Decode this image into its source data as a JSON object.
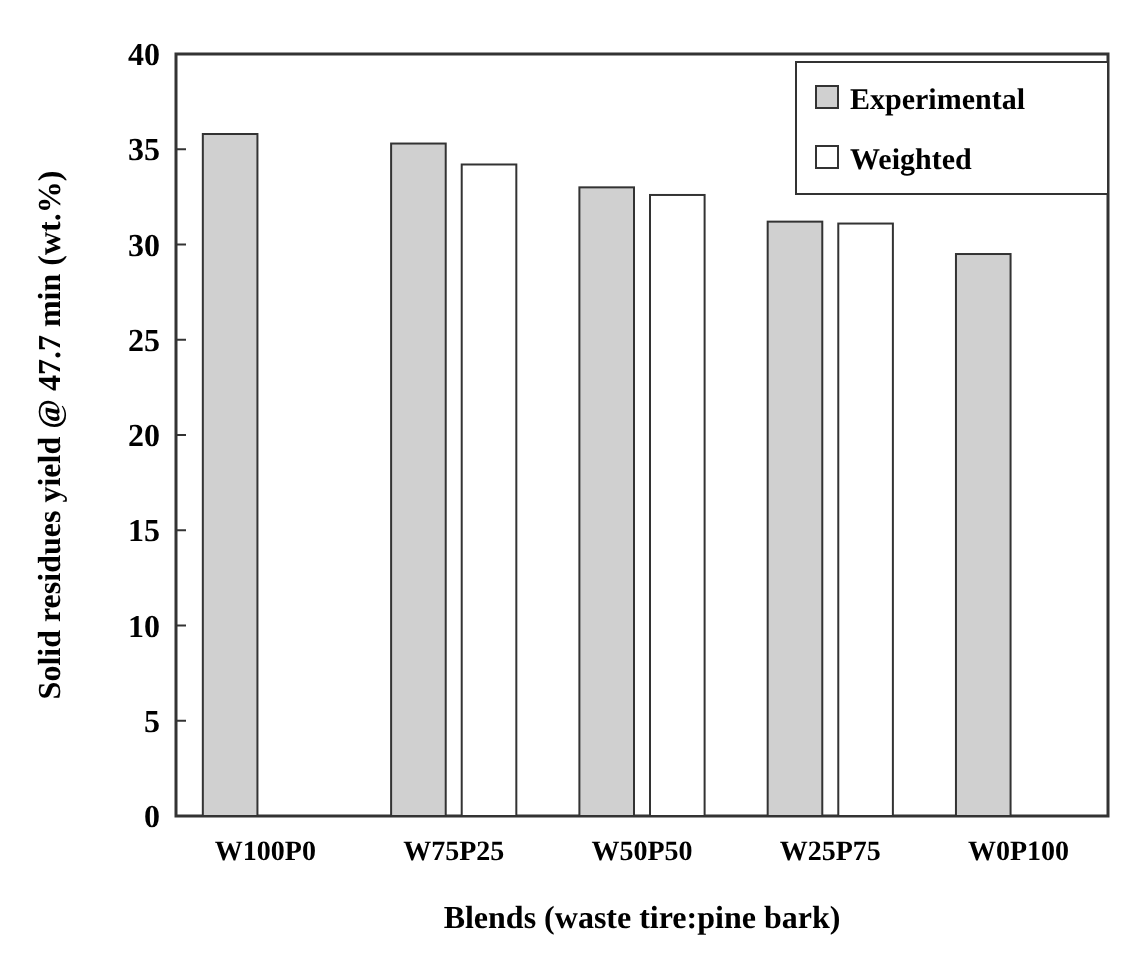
{
  "chart_data": {
    "type": "bar",
    "xlabel": "Blends (waste tire:pine bark)",
    "ylabel": "Solid residues yield @ 47.7 min (wt.%)",
    "categories": [
      "W100P0",
      "W75P25",
      "W50P50",
      "W25P75",
      "W0P100"
    ],
    "series": [
      {
        "name": "Experimental",
        "color": "#d0d0d0",
        "values": [
          35.8,
          35.3,
          33.0,
          31.2,
          29.5
        ]
      },
      {
        "name": "Weighted",
        "color": "#ffffff",
        "values": [
          null,
          34.2,
          32.6,
          31.1,
          null
        ]
      }
    ],
    "ylim": [
      0,
      40
    ],
    "yticks": [
      0,
      5,
      10,
      15,
      20,
      25,
      30,
      35,
      40
    ],
    "legend": "top right"
  }
}
